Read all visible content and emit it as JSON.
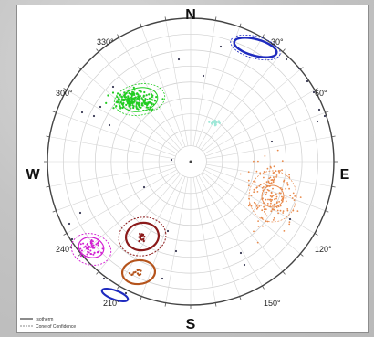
{
  "plot": {
    "cardinals": {
      "north": "N",
      "east": "E",
      "south": "S",
      "west": "W"
    },
    "azimuths": [
      {
        "label": "30°",
        "deg": 30
      },
      {
        "label": "60°",
        "deg": 60
      },
      {
        "label": "120°",
        "deg": 120
      },
      {
        "label": "150°",
        "deg": 150
      },
      {
        "label": "210°",
        "deg": 210
      },
      {
        "label": "240°",
        "deg": 240
      },
      {
        "label": "300°",
        "deg": 300
      },
      {
        "label": "330°",
        "deg": 330
      }
    ],
    "legend": [
      {
        "label": "Isotherm",
        "color": "#1a1a1a"
      },
      {
        "label": "Cone of Confidence",
        "color": "#888888"
      }
    ],
    "colors": {
      "green": "#22cc22",
      "orange": "#e8894a",
      "magenta": "#d21fd2",
      "darkred": "#8b1a1a",
      "brown": "#b5541c",
      "blue": "#1f2bbf",
      "cyan": "#9fe8d8",
      "dark": "#3a3a55"
    }
  }
}
